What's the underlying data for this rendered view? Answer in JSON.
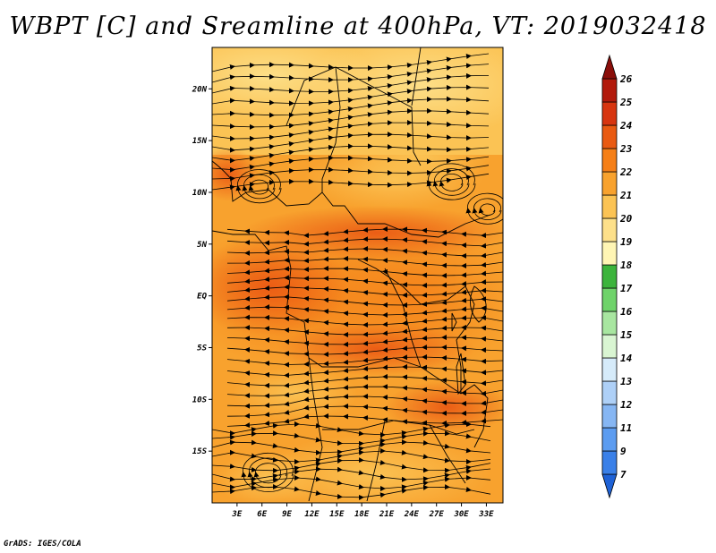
{
  "title": "WBPT [C] and Sreamline at 400hPa, VT: 2019032418",
  "credit": "GrADS: IGES/COLA",
  "map": {
    "lon_range": [
      0,
      35
    ],
    "lat_range": [
      -20,
      24
    ],
    "lat_ticks": [
      {
        "value": 20,
        "label": "20N"
      },
      {
        "value": 15,
        "label": "15N"
      },
      {
        "value": 10,
        "label": "10N"
      },
      {
        "value": 5,
        "label": "5N"
      },
      {
        "value": 0,
        "label": "EQ"
      },
      {
        "value": -5,
        "label": "5S"
      },
      {
        "value": -10,
        "label": "10S"
      },
      {
        "value": -15,
        "label": "15S"
      }
    ],
    "lon_ticks": [
      {
        "value": 3,
        "label": "3E"
      },
      {
        "value": 6,
        "label": "6E"
      },
      {
        "value": 9,
        "label": "9E"
      },
      {
        "value": 12,
        "label": "12E"
      },
      {
        "value": 15,
        "label": "15E"
      },
      {
        "value": 18,
        "label": "18E"
      },
      {
        "value": 21,
        "label": "21E"
      },
      {
        "value": 24,
        "label": "24E"
      },
      {
        "value": 27,
        "label": "27E"
      },
      {
        "value": 30,
        "label": "30E"
      },
      {
        "value": 33,
        "label": "33E"
      }
    ]
  },
  "colorbar": {
    "levels": [
      "7",
      "9",
      "11",
      "12",
      "13",
      "14",
      "15",
      "16",
      "17",
      "18",
      "19",
      "20",
      "21",
      "22",
      "23",
      "24",
      "25",
      "26"
    ],
    "colors": [
      "#1f62d6",
      "#3a80e8",
      "#5c9cf0",
      "#86b6f3",
      "#aed0f7",
      "#d6ebfa",
      "#d9f5d2",
      "#a8e6a0",
      "#6fd36a",
      "#3cb43c",
      "#fff5b4",
      "#fde08a",
      "#fbc354",
      "#f8a22e",
      "#f57f17",
      "#e95a12",
      "#d73510",
      "#b21a0c",
      "#8a0e0a"
    ]
  }
}
